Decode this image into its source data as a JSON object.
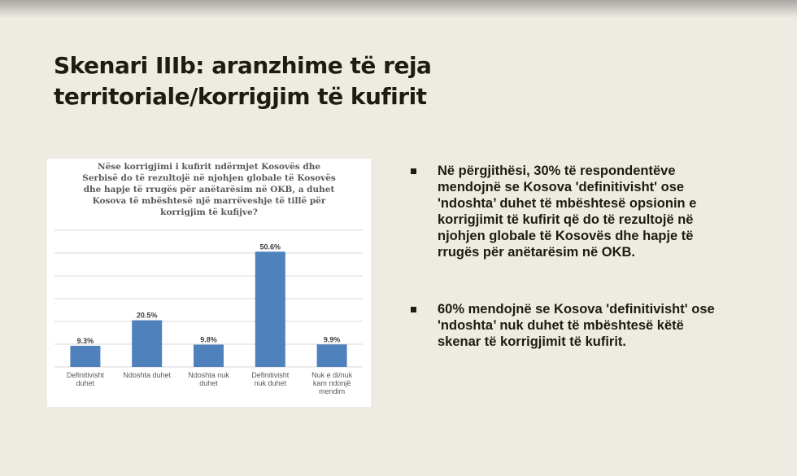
{
  "slide": {
    "title_lines": [
      "Skenari IIIb: aranzhime të reja",
      "territoriale/korrigjim të kufirit"
    ]
  },
  "bullets": [
    "Në përgjithësi, 30% të respondentëve mendojnë se Kosova 'definitivisht' ose 'ndoshta’ duhet të mbështesë opsionin e korrigjimit të kufirit që do të rezultojë në njohjen globale të Kosovës dhe hapje të rrugës për anëtarësim në OKB.",
    "60% mendojnë se Kosova 'definitivisht' ose 'ndoshta’ nuk duhet të mbështesë këtë skenar të korrigjimit të kufirit."
  ],
  "chart_data": {
    "type": "bar",
    "title_lines": [
      "Nëse korrigjimi i kufirit ndërmjet Kosovës dhe",
      "Serbisë do të rezultojë në njohjen globale të Kosovës",
      "dhe hapje të rrugës për anëtarësim në OKB, a duhet",
      "Kosova të mbështesë një marrëveshje të tillë për",
      "korrigjim të kufijve?"
    ],
    "categories": [
      [
        "Definitivisht",
        "duhet"
      ],
      [
        "Ndoshta duhet"
      ],
      [
        "Ndoshta nuk",
        "duhet"
      ],
      [
        "Definitivisht",
        "nuk duhet"
      ],
      [
        "Nuk e di/nuk",
        "kam ndonjë",
        "mendim"
      ]
    ],
    "values": [
      9.3,
      20.5,
      9.8,
      50.6,
      9.9
    ],
    "data_labels": [
      "9.3%",
      "20.5%",
      "9.8%",
      "50.6%",
      "9.9%"
    ],
    "ylim": [
      0,
      60
    ],
    "grid": true,
    "bar_color": "#4f81bd"
  }
}
